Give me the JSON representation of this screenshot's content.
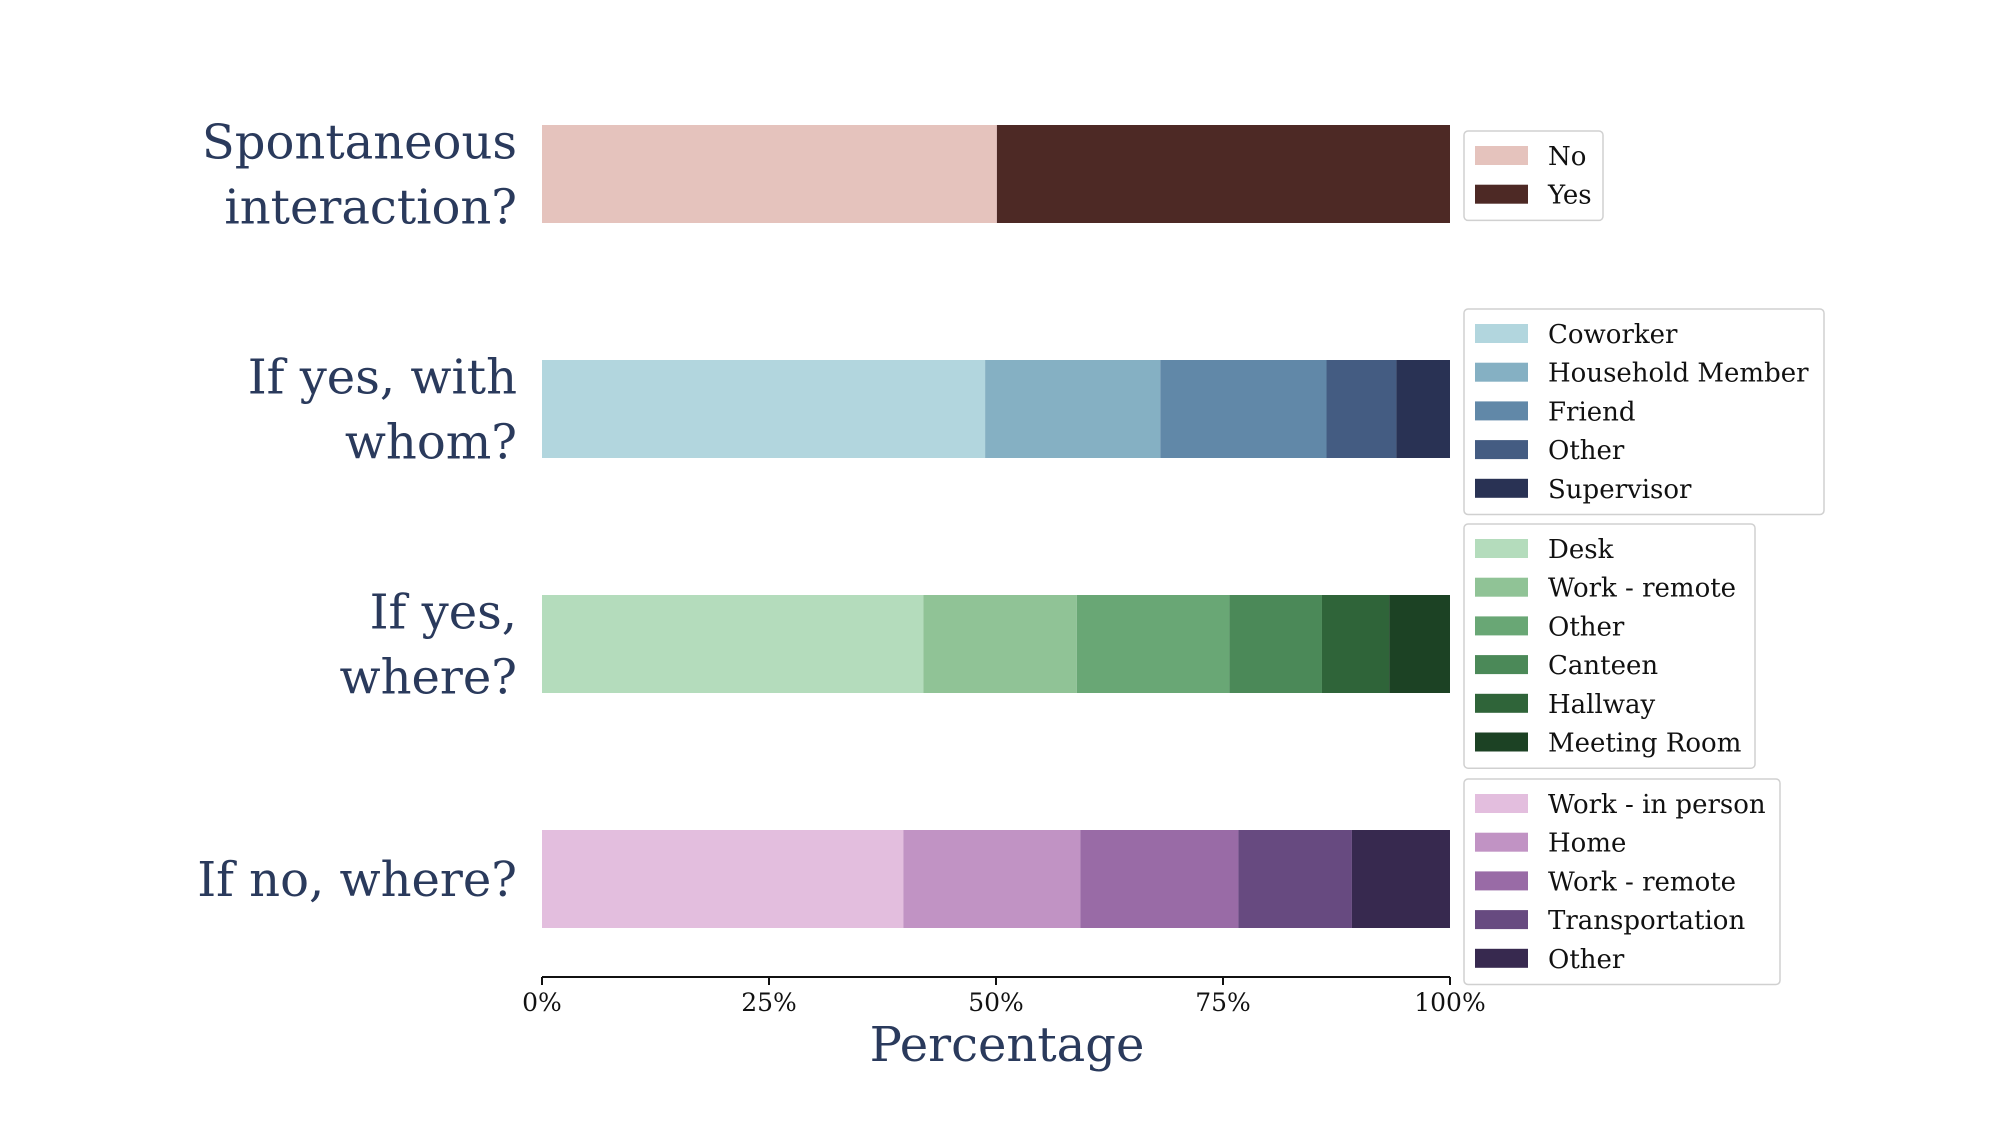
{
  "chart_data": {
    "type": "bar",
    "orientation": "horizontal",
    "stacked": true,
    "xlabel": "Percentage",
    "xlim": [
      0,
      100
    ],
    "xticks": [
      "0%",
      "25%",
      "50%",
      "75%",
      "100%"
    ],
    "grid": false,
    "legend_placement": "right of each bar",
    "groups": [
      {
        "label": [
          "Spontaneous",
          "interaction?"
        ],
        "segments": [
          {
            "name": "No",
            "value": 50.1,
            "color": "#e5c3bd"
          },
          {
            "name": "Yes",
            "value": 49.9,
            "color": "#4d2925"
          }
        ]
      },
      {
        "label": [
          "If yes, with",
          "whom?"
        ],
        "segments": [
          {
            "name": "Coworker",
            "value": 48.8,
            "color": "#b2d6de"
          },
          {
            "name": "Household Member",
            "value": 19.3,
            "color": "#85b0c3"
          },
          {
            "name": "Friend",
            "value": 18.3,
            "color": "#6188a8"
          },
          {
            "name": "Other",
            "value": 7.7,
            "color": "#445c82"
          },
          {
            "name": "Supervisor",
            "value": 5.9,
            "color": "#293254"
          }
        ]
      },
      {
        "label": [
          "If yes,",
          "where?"
        ],
        "segments": [
          {
            "name": "Desk",
            "value": 42.0,
            "color": "#b4dcbc"
          },
          {
            "name": "Work - remote",
            "value": 16.9,
            "color": "#90c396"
          },
          {
            "name": "Other",
            "value": 16.8,
            "color": "#69a775"
          },
          {
            "name": "Canteen",
            "value": 10.2,
            "color": "#4b8958"
          },
          {
            "name": "Hallway",
            "value": 7.4,
            "color": "#2f6439"
          },
          {
            "name": "Meeting Room",
            "value": 6.7,
            "color": "#1c4224"
          }
        ]
      },
      {
        "label": [
          "If no, where?"
        ],
        "segments": [
          {
            "name": "Work - in person",
            "value": 39.8,
            "color": "#e3bede"
          },
          {
            "name": "Home",
            "value": 19.5,
            "color": "#c193c4"
          },
          {
            "name": "Work - remote",
            "value": 17.4,
            "color": "#996ba6"
          },
          {
            "name": "Transportation",
            "value": 12.5,
            "color": "#674a80"
          },
          {
            "name": "Other",
            "value": 10.8,
            "color": "#37294f"
          }
        ]
      }
    ]
  }
}
